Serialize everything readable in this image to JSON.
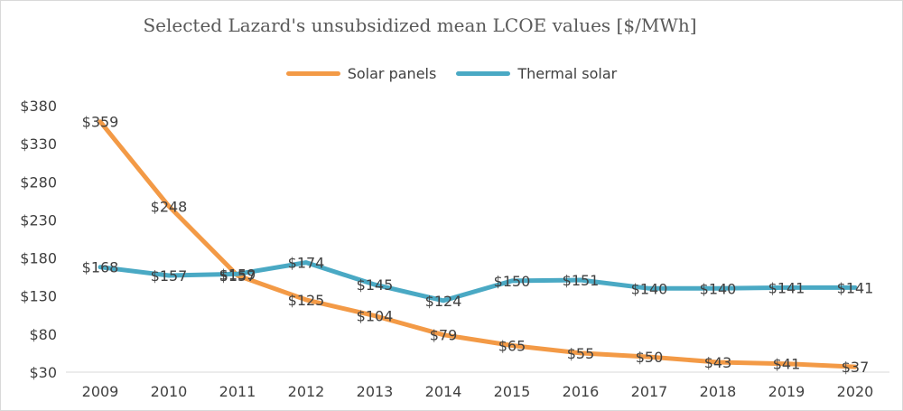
{
  "chart_data": {
    "type": "line",
    "title": "Selected Lazard's unsubsidized mean LCOE values [$/MWh]",
    "categories": [
      "2009",
      "2010",
      "2011",
      "2012",
      "2013",
      "2014",
      "2015",
      "2016",
      "2017",
      "2018",
      "2019",
      "2020"
    ],
    "series": [
      {
        "name": "Solar panels",
        "color": "#f39a46",
        "values": [
          359,
          248,
          157,
          125,
          104,
          79,
          65,
          55,
          50,
          43,
          41,
          37
        ],
        "labels": [
          "$359",
          "$248",
          "$157",
          "$125",
          "$104",
          "$79",
          "$65",
          "$55",
          "$50",
          "$43",
          "$41",
          "$37"
        ]
      },
      {
        "name": "Thermal solar",
        "color": "#4aa9c4",
        "values": [
          168,
          157,
          159,
          174,
          145,
          124,
          150,
          151,
          140,
          140,
          141,
          141
        ],
        "labels": [
          "$168",
          "$157",
          "$159",
          "$174",
          "$145",
          "$124",
          "$150",
          "$151",
          "$140",
          "$140",
          "$141",
          "$141"
        ]
      }
    ],
    "y_ticks": [
      "$30",
      "$80",
      "$130",
      "$180",
      "$230",
      "$280",
      "$330",
      "$380"
    ],
    "y_tick_values": [
      30,
      80,
      130,
      180,
      230,
      280,
      330,
      380
    ],
    "ylim": [
      30,
      380
    ],
    "grid": false,
    "legend_position": "top"
  }
}
